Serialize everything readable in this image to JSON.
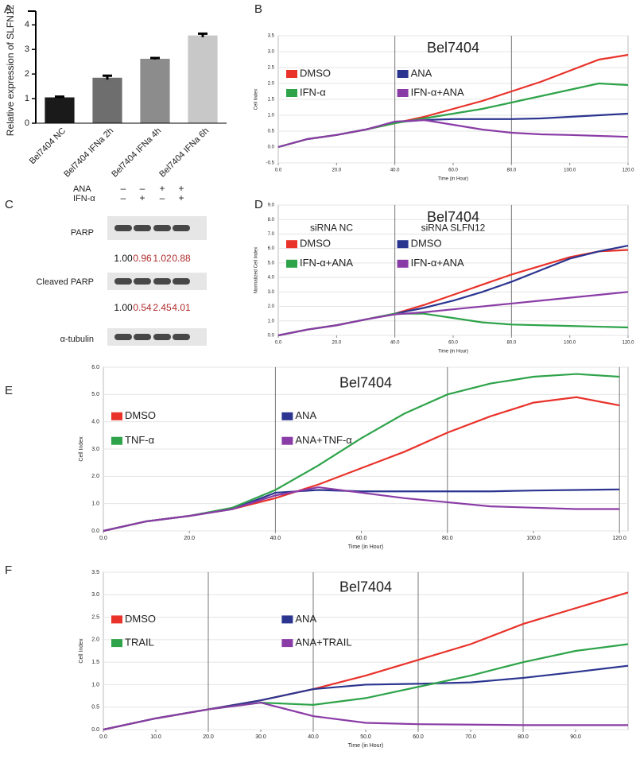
{
  "chart_data": [
    {
      "type": "bar",
      "panel": "A",
      "ylabel": "Relative expression of SLFN12",
      "categories": [
        "Bel7404 NC",
        "Bel7404 IFNa 2h",
        "Bel7404 IFNa 4h",
        "Bel7404 IFNa 6h"
      ],
      "values": [
        1.05,
        1.85,
        2.62,
        3.57
      ],
      "errors": [
        0.03,
        0.08,
        0.03,
        0.07
      ],
      "colors": [
        "#1a1a1a",
        "#6e6e6e",
        "#8c8c8c",
        "#c8c8c8"
      ],
      "ylim": [
        0,
        4.3
      ],
      "yticks": [
        0,
        1,
        2,
        3,
        4
      ]
    },
    {
      "type": "line",
      "panel": "B",
      "title": "Bel7404",
      "xlabel": "Time (in Hour)",
      "ylabel": "Cell Index",
      "x": [
        0,
        10,
        20,
        30,
        40,
        50,
        60,
        70,
        80,
        90,
        100,
        110,
        120
      ],
      "series": [
        {
          "name": "DMSO",
          "color": "#e8322a",
          "values": [
            0,
            0.25,
            0.38,
            0.55,
            0.75,
            0.95,
            1.2,
            1.45,
            1.75,
            2.05,
            2.4,
            2.75,
            2.9
          ]
        },
        {
          "name": "ANA",
          "color": "#2b3590",
          "values": [
            0,
            0.25,
            0.38,
            0.55,
            0.78,
            0.85,
            0.88,
            0.88,
            0.88,
            0.9,
            0.95,
            1.0,
            1.05
          ]
        },
        {
          "name": "IFN-α",
          "color": "#2ea34a",
          "values": [
            0,
            0.25,
            0.38,
            0.55,
            0.75,
            0.9,
            1.05,
            1.2,
            1.4,
            1.6,
            1.8,
            2.0,
            1.95
          ]
        },
        {
          "name": "IFN-α+ANA",
          "color": "#8a3ca6",
          "values": [
            0,
            0.25,
            0.38,
            0.55,
            0.8,
            0.85,
            0.7,
            0.55,
            0.45,
            0.4,
            0.38,
            0.35,
            0.32
          ]
        }
      ],
      "xlim": [
        0,
        120
      ],
      "xticks": [
        {
          "value": 0,
          "label": "0.0"
        },
        {
          "value": 20,
          "label": "20.0"
        },
        {
          "value": 40,
          "label": "40.0"
        },
        {
          "value": 60,
          "label": "60.0"
        },
        {
          "value": 80,
          "label": "80.0"
        },
        {
          "value": 100,
          "label": "100.0"
        },
        {
          "value": 120,
          "label": "120.0"
        }
      ],
      "ylim": [
        -0.5,
        3.5
      ],
      "yticks": [
        -0.5,
        {
          "value": 0,
          "label": "0.0"
        },
        0.5,
        {
          "value": 1,
          "label": "1.0"
        },
        1.5,
        {
          "value": 2,
          "label": "2.0"
        },
        2.5,
        {
          "value": 3,
          "label": "3.0"
        },
        3.5
      ],
      "grid": true,
      "vlines": [
        40,
        80
      ]
    },
    {
      "type": "line",
      "panel": "D",
      "title": "Bel7404",
      "xlabel": "Time (in Hour)",
      "ylabel": "Normalized Cell Index",
      "groups": [
        "siRNA NC",
        "siRNA SLFN12"
      ],
      "x": [
        0,
        10,
        20,
        30,
        40,
        50,
        60,
        70,
        80,
        90,
        100,
        110,
        120
      ],
      "series": [
        {
          "name": "DMSO",
          "color": "#e8322a",
          "values": [
            0,
            0.4,
            0.7,
            1.1,
            1.5,
            2.1,
            2.8,
            3.5,
            4.2,
            4.8,
            5.4,
            5.8,
            5.9
          ]
        },
        {
          "name": "DMSO",
          "color": "#2b3590",
          "values": [
            0,
            0.4,
            0.7,
            1.1,
            1.5,
            1.9,
            2.4,
            3.0,
            3.7,
            4.5,
            5.3,
            5.8,
            6.2
          ]
        },
        {
          "name": "IFN-α+ANA",
          "color": "#2ea34a",
          "values": [
            0,
            0.4,
            0.7,
            1.1,
            1.5,
            1.5,
            1.2,
            0.9,
            0.75,
            0.7,
            0.65,
            0.6,
            0.55
          ]
        },
        {
          "name": "IFN-α+ANA",
          "color": "#8a3ca6",
          "values": [
            0,
            0.4,
            0.7,
            1.1,
            1.45,
            1.6,
            1.8,
            2.0,
            2.2,
            2.4,
            2.6,
            2.8,
            3.0
          ]
        }
      ],
      "xlim": [
        0,
        120
      ],
      "xticks": [
        {
          "value": 0,
          "label": "0.0"
        },
        {
          "value": 20,
          "label": "20.0"
        },
        {
          "value": 40,
          "label": "40.0"
        },
        {
          "value": 60,
          "label": "60.0"
        },
        {
          "value": 80,
          "label": "80.0"
        },
        {
          "value": 100,
          "label": "100.0"
        },
        {
          "value": 120,
          "label": "120.0"
        }
      ],
      "ylim": [
        0,
        9
      ],
      "yticks": [
        {
          "value": 0,
          "label": "0.0"
        },
        {
          "value": 1,
          "label": "1.0"
        },
        {
          "value": 2,
          "label": "2.0"
        },
        {
          "value": 3,
          "label": "3.0"
        },
        {
          "value": 4,
          "label": "4.0"
        },
        {
          "value": 5,
          "label": "5.0"
        },
        {
          "value": 6,
          "label": "6.0"
        },
        {
          "value": 7,
          "label": "7.0"
        },
        {
          "value": 8,
          "label": "8.0"
        },
        {
          "value": 9,
          "label": "9.0"
        }
      ],
      "grid": true,
      "vlines": [
        40,
        80
      ]
    },
    {
      "type": "line",
      "panel": "E",
      "title": "Bel7404",
      "xlabel": "Time (in Hour)",
      "ylabel": "Cell Index",
      "x": [
        0,
        10,
        20,
        30,
        40,
        50,
        60,
        70,
        80,
        90,
        100,
        110,
        120
      ],
      "series": [
        {
          "name": "DMSO",
          "color": "#e8322a",
          "values": [
            0,
            0.35,
            0.55,
            0.8,
            1.2,
            1.7,
            2.3,
            2.9,
            3.6,
            4.2,
            4.7,
            4.9,
            4.6
          ]
        },
        {
          "name": "ANA",
          "color": "#2b3590",
          "values": [
            0,
            0.35,
            0.55,
            0.8,
            1.4,
            1.5,
            1.45,
            1.45,
            1.45,
            1.45,
            1.48,
            1.5,
            1.52
          ]
        },
        {
          "name": "TNF-α",
          "color": "#2ea34a",
          "values": [
            0,
            0.35,
            0.55,
            0.85,
            1.5,
            2.4,
            3.4,
            4.3,
            5.0,
            5.4,
            5.65,
            5.75,
            5.65
          ]
        },
        {
          "name": "ANA+TNF-α",
          "color": "#8a3ca6",
          "values": [
            0,
            0.35,
            0.55,
            0.8,
            1.3,
            1.6,
            1.4,
            1.2,
            1.05,
            0.9,
            0.85,
            0.8,
            0.8
          ]
        }
      ],
      "xlim": [
        0,
        122
      ],
      "xticks": [
        {
          "value": 0,
          "label": "0.0"
        },
        {
          "value": 20,
          "label": "20.0"
        },
        {
          "value": 40,
          "label": "40.0"
        },
        {
          "value": 60,
          "label": "60.0"
        },
        {
          "value": 80,
          "label": "80.0"
        },
        {
          "value": 100,
          "label": "100.0"
        },
        {
          "value": 120,
          "label": "120.0"
        }
      ],
      "ylim": [
        0,
        6
      ],
      "yticks": [
        {
          "value": 0,
          "label": "0.0"
        },
        {
          "value": 1,
          "label": "1.0"
        },
        {
          "value": 2,
          "label": "2.0"
        },
        {
          "value": 3,
          "label": "3.0"
        },
        {
          "value": 4,
          "label": "4.0"
        },
        {
          "value": 5,
          "label": "5.0"
        },
        {
          "value": 6,
          "label": "6.0"
        }
      ],
      "grid": true,
      "vlines": [
        40,
        80,
        120
      ]
    },
    {
      "type": "line",
      "panel": "F",
      "title": "Bel7404",
      "xlabel": "Time (in Hour)",
      "ylabel": "Cell Index",
      "x": [
        0,
        10,
        20,
        30,
        40,
        50,
        60,
        70,
        80,
        90,
        100
      ],
      "series": [
        {
          "name": "DMSO",
          "color": "#e8322a",
          "values": [
            0,
            0.25,
            0.45,
            0.65,
            0.9,
            1.2,
            1.55,
            1.9,
            2.35,
            2.7,
            3.05
          ]
        },
        {
          "name": "ANA",
          "color": "#2b3590",
          "values": [
            0,
            0.25,
            0.45,
            0.65,
            0.9,
            1.0,
            1.02,
            1.05,
            1.15,
            1.28,
            1.42
          ]
        },
        {
          "name": "TRAIL",
          "color": "#2ea34a",
          "values": [
            0,
            0.25,
            0.45,
            0.6,
            0.55,
            0.7,
            0.95,
            1.2,
            1.5,
            1.75,
            1.9
          ]
        },
        {
          "name": "ANA+TRAIL",
          "color": "#8a3ca6",
          "values": [
            0,
            0.25,
            0.45,
            0.6,
            0.3,
            0.15,
            0.12,
            0.11,
            0.1,
            0.1,
            0.1
          ]
        }
      ],
      "xlim": [
        0,
        100
      ],
      "xticks": [
        {
          "value": 0,
          "label": "0.0"
        },
        {
          "value": 10,
          "label": "10.0"
        },
        {
          "value": 20,
          "label": "20.0"
        },
        {
          "value": 30,
          "label": "30.0"
        },
        {
          "value": 40,
          "label": "40.0"
        },
        {
          "value": 50,
          "label": "50.0"
        },
        {
          "value": 60,
          "label": "60.0"
        },
        {
          "value": 70,
          "label": "70.0"
        },
        {
          "value": 80,
          "label": "80.0"
        },
        {
          "value": 90,
          "label": "90.0"
        }
      ],
      "ylim": [
        0,
        3.5
      ],
      "yticks": [
        {
          "value": 0,
          "label": "0.0"
        },
        0.5,
        {
          "value": 1,
          "label": "1.0"
        },
        1.5,
        {
          "value": 2,
          "label": "2.0"
        },
        2.5,
        {
          "value": 3,
          "label": "3.0"
        },
        3.5
      ],
      "grid": true,
      "vlines": [
        20,
        40,
        60,
        80
      ]
    }
  ],
  "blot": {
    "panel": "C",
    "conditions": [
      {
        "name": "ANA",
        "marks": [
          "–",
          "–",
          "+",
          "+"
        ]
      },
      {
        "name": "IFN-α",
        "marks": [
          "–",
          "+",
          "–",
          "+"
        ]
      }
    ],
    "bands": [
      {
        "name": "PARP",
        "quantities": [
          "1.00",
          "0.96",
          "1.02",
          "0.88"
        ]
      },
      {
        "name": "Cleaved PARP",
        "quantities": [
          "1.00",
          "0.54",
          "2.45",
          "4.01"
        ]
      },
      {
        "name": "α-tubulin"
      }
    ]
  }
}
